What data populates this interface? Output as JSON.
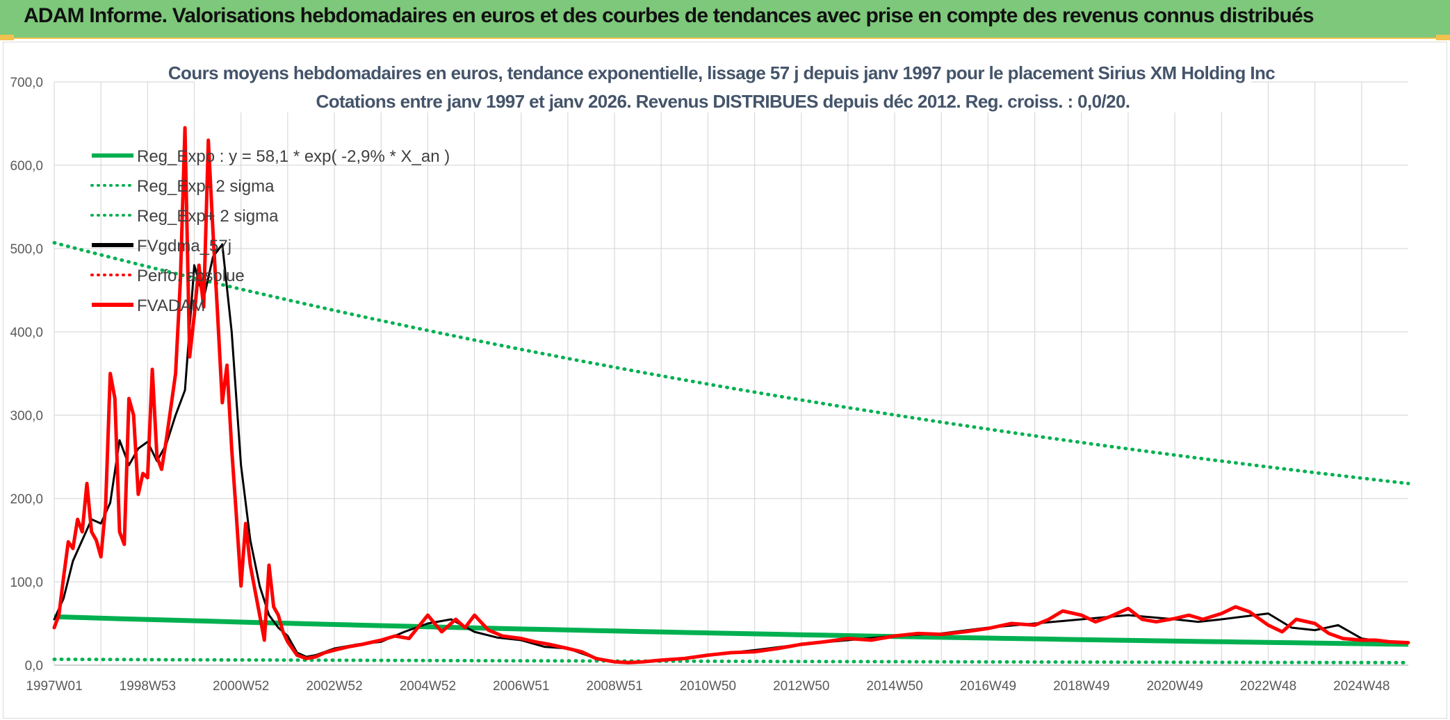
{
  "header": {
    "title": "ADAM Informe. Valorisations hebdomadaires en euros et des courbes de tendances avec prise en compte des revenus connus distribués"
  },
  "colors": {
    "banner": "#7dc87a",
    "green": "#00b050",
    "red": "#ff0000",
    "black": "#000000",
    "grid": "#d9d9d9",
    "title": "#44546a"
  },
  "chart_data": {
    "type": "line",
    "title": "Cours moyens hebdomadaires en euros, tendance exponentielle, lissage 57 j depuis janv 1997 pour le placement Sirius XM Holding Inc",
    "subtitle": "Cotations entre janv 1997 et janv 2026. Revenus DISTRIBUES depuis déc 2012. Reg. croiss. : 0,0/20.",
    "xlabel": "",
    "ylabel": "",
    "ylim": [
      0,
      700
    ],
    "xlim": [
      1997.0,
      2026.0
    ],
    "grid": true,
    "legend_position": "top-left",
    "y_ticks": [
      "0,0",
      "100,0",
      "200,0",
      "300,0",
      "400,0",
      "500,0",
      "600,0",
      "700,0"
    ],
    "x_ticks": [
      {
        "label": "1997W01",
        "x": 1997.0
      },
      {
        "label": "1998W53",
        "x": 1999.0
      },
      {
        "label": "2000W52",
        "x": 2001.0
      },
      {
        "label": "2002W52",
        "x": 2003.0
      },
      {
        "label": "2004W52",
        "x": 2005.0
      },
      {
        "label": "2006W51",
        "x": 2007.0
      },
      {
        "label": "2008W51",
        "x": 2009.0
      },
      {
        "label": "2010W50",
        "x": 2011.0
      },
      {
        "label": "2012W50",
        "x": 2013.0
      },
      {
        "label": "2014W50",
        "x": 2015.0
      },
      {
        "label": "2016W49",
        "x": 2017.0
      },
      {
        "label": "2018W49",
        "x": 2019.0
      },
      {
        "label": "2020W49",
        "x": 2021.0
      },
      {
        "label": "2022W48",
        "x": 2023.0
      },
      {
        "label": "2024W48",
        "x": 2025.0
      }
    ],
    "legend": [
      {
        "name": "Reg_Expo : y = 58,1 * exp( -2,9% *  X_an )",
        "color": "#00b050",
        "style": "solid"
      },
      {
        "name": "Reg_Exp- 2 sigma",
        "color": "#00b050",
        "style": "dotted"
      },
      {
        "name": "Reg_Exp+ 2 sigma",
        "color": "#00b050",
        "style": "dotted"
      },
      {
        "name": "FVgdma_57j",
        "color": "#000000",
        "style": "solid"
      },
      {
        "name": "Perfo. absolue",
        "color": "#ff0000",
        "style": "dotted"
      },
      {
        "name": "FVADAM",
        "color": "#ff0000",
        "style": "solid"
      }
    ],
    "series": [
      {
        "name": "Reg_Expo",
        "x": [
          1997.0,
          2026.0
        ],
        "values": [
          58.1,
          25.0
        ]
      },
      {
        "name": "Reg_Exp- 2 sigma",
        "x": [
          1997.0,
          2026.0
        ],
        "values": [
          7.0,
          3.0
        ]
      },
      {
        "name": "Reg_Exp+ 2 sigma",
        "x": [
          1997.0,
          2026.0
        ],
        "values": [
          507.0,
          218.0
        ]
      },
      {
        "name": "FVgdma_57j",
        "x": [
          1997.0,
          1997.2,
          1997.4,
          1997.6,
          1997.8,
          1998.0,
          1998.2,
          1998.4,
          1998.6,
          1998.8,
          1999.0,
          1999.2,
          1999.4,
          1999.6,
          1999.8,
          2000.0,
          2000.2,
          2000.4,
          2000.6,
          2000.8,
          2001.0,
          2001.2,
          2001.4,
          2001.6,
          2001.8,
          2002.0,
          2002.2,
          2002.4,
          2002.6,
          2002.8,
          2003.0,
          2003.5,
          2004.0,
          2004.5,
          2005.0,
          2005.5,
          2006.0,
          2006.5,
          2007.0,
          2007.5,
          2008.0,
          2008.5,
          2009.0,
          2009.5,
          2010.0,
          2011.0,
          2012.0,
          2013.0,
          2014.0,
          2015.0,
          2016.0,
          2017.0,
          2018.0,
          2019.0,
          2020.0,
          2021.0,
          2021.5,
          2022.0,
          2023.0,
          2023.5,
          2024.0,
          2024.5,
          2025.0,
          2025.5,
          2026.0
        ],
        "values": [
          55,
          80,
          125,
          150,
          175,
          170,
          195,
          270,
          240,
          260,
          268,
          245,
          265,
          300,
          330,
          480,
          440,
          490,
          505,
          400,
          240,
          150,
          95,
          60,
          45,
          35,
          15,
          10,
          12,
          16,
          20,
          25,
          28,
          40,
          50,
          55,
          40,
          33,
          30,
          22,
          20,
          10,
          4,
          4,
          5,
          12,
          18,
          25,
          30,
          35,
          38,
          45,
          50,
          55,
          60,
          55,
          52,
          55,
          62,
          45,
          42,
          48,
          32,
          28,
          27
        ]
      },
      {
        "name": "FVADAM",
        "x": [
          1997.0,
          1997.1,
          1997.2,
          1997.3,
          1997.4,
          1997.5,
          1997.6,
          1997.7,
          1997.8,
          1997.9,
          1998.0,
          1998.1,
          1998.2,
          1998.3,
          1998.4,
          1998.5,
          1998.6,
          1998.7,
          1998.8,
          1998.9,
          1999.0,
          1999.1,
          1999.2,
          1999.3,
          1999.4,
          1999.5,
          1999.6,
          1999.7,
          1999.8,
          1999.9,
          2000.0,
          2000.1,
          2000.2,
          2000.3,
          2000.4,
          2000.5,
          2000.6,
          2000.7,
          2000.8,
          2000.9,
          2001.0,
          2001.1,
          2001.2,
          2001.3,
          2001.4,
          2001.5,
          2001.6,
          2001.7,
          2001.8,
          2001.9,
          2002.0,
          2002.2,
          2002.4,
          2002.6,
          2002.8,
          2003.0,
          2003.3,
          2003.6,
          2004.0,
          2004.3,
          2004.6,
          2005.0,
          2005.3,
          2005.6,
          2005.8,
          2006.0,
          2006.3,
          2006.6,
          2007.0,
          2007.3,
          2007.6,
          2008.0,
          2008.3,
          2008.6,
          2009.0,
          2009.3,
          2009.6,
          2010.0,
          2010.5,
          2011.0,
          2011.5,
          2012.0,
          2012.5,
          2013.0,
          2013.5,
          2014.0,
          2014.5,
          2015.0,
          2015.5,
          2016.0,
          2016.5,
          2017.0,
          2017.5,
          2018.0,
          2018.3,
          2018.6,
          2019.0,
          2019.3,
          2019.6,
          2020.0,
          2020.3,
          2020.6,
          2021.0,
          2021.3,
          2021.6,
          2022.0,
          2022.3,
          2022.6,
          2023.0,
          2023.3,
          2023.6,
          2024.0,
          2024.3,
          2024.6,
          2025.0,
          2025.3,
          2025.6,
          2026.0
        ],
        "values": [
          45,
          60,
          105,
          148,
          140,
          175,
          160,
          218,
          160,
          150,
          130,
          190,
          350,
          320,
          160,
          145,
          320,
          300,
          205,
          230,
          225,
          355,
          250,
          235,
          270,
          310,
          350,
          460,
          645,
          370,
          420,
          480,
          430,
          630,
          520,
          420,
          315,
          360,
          260,
          180,
          95,
          170,
          120,
          90,
          60,
          30,
          120,
          70,
          60,
          40,
          28,
          12,
          8,
          10,
          15,
          18,
          22,
          25,
          30,
          35,
          32,
          60,
          40,
          55,
          45,
          60,
          42,
          35,
          32,
          28,
          25,
          20,
          16,
          8,
          4,
          3,
          4,
          6,
          8,
          12,
          15,
          16,
          20,
          25,
          28,
          32,
          30,
          35,
          38,
          37,
          40,
          44,
          50,
          48,
          55,
          65,
          60,
          52,
          58,
          68,
          55,
          52,
          56,
          60,
          55,
          62,
          70,
          64,
          48,
          40,
          55,
          50,
          38,
          32,
          30,
          30,
          28,
          27
        ]
      }
    ]
  }
}
